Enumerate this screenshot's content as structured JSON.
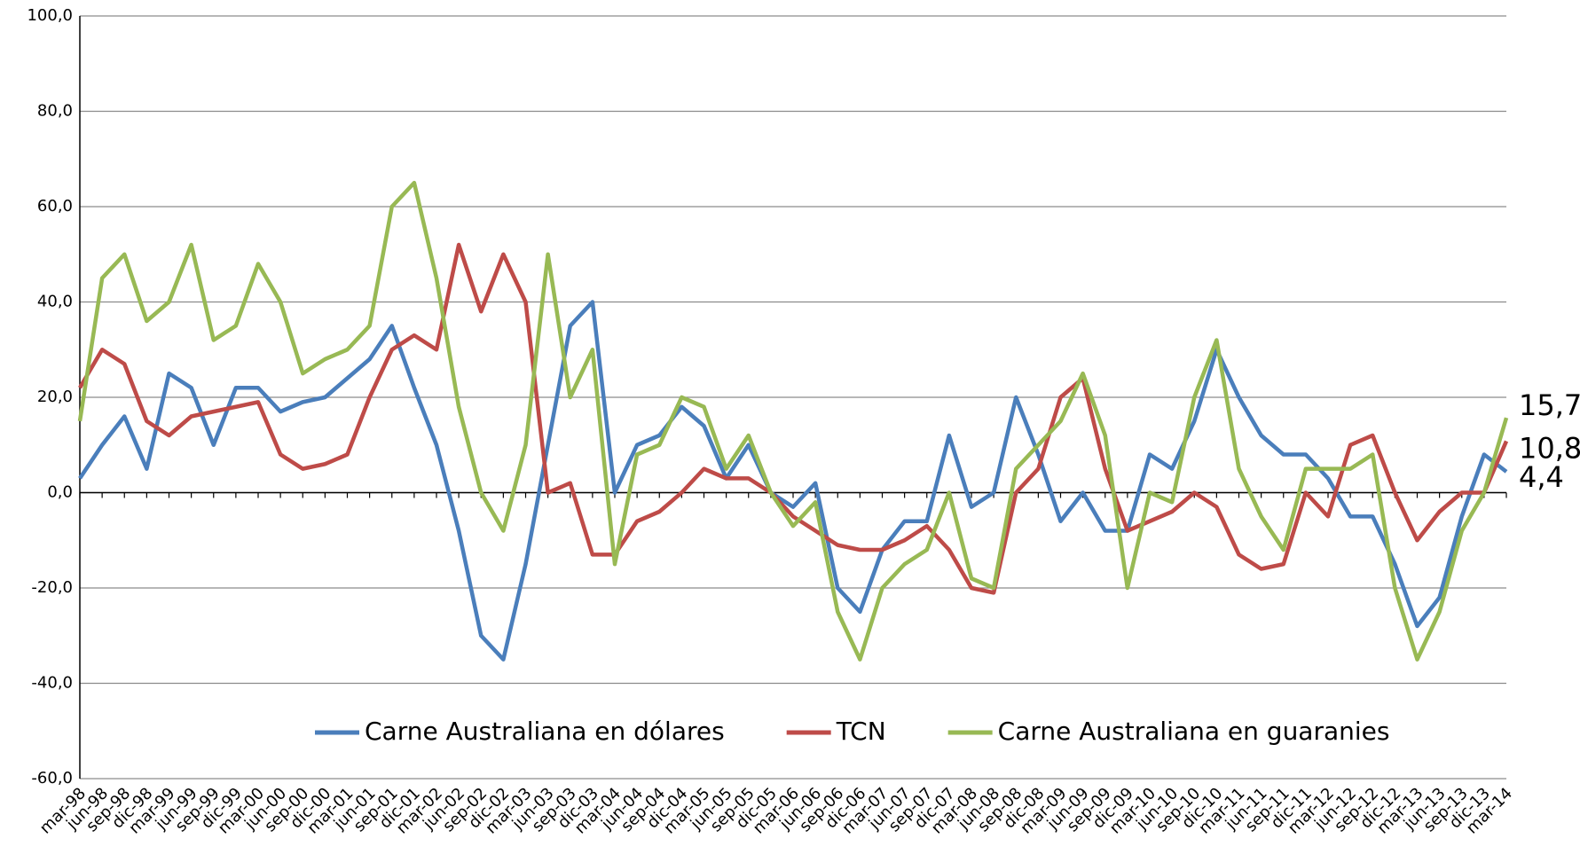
{
  "chart_data": {
    "type": "line",
    "categories": [
      "mar-98",
      "jun-98",
      "sep-98",
      "dic-98",
      "mar-99",
      "jun-99",
      "sep-99",
      "dic-99",
      "mar-00",
      "jun-00",
      "sep-00",
      "dic-00",
      "mar-01",
      "jun-01",
      "sep-01",
      "dic-01",
      "mar-02",
      "jun-02",
      "sep-02",
      "dic-02",
      "mar-03",
      "jun-03",
      "sep-03",
      "dic-03",
      "mar-04",
      "jun-04",
      "sep-04",
      "dic-04",
      "mar-05",
      "jun-05",
      "sep-05",
      "dic-05",
      "mar-06",
      "jun-06",
      "sep-06",
      "dic-06",
      "mar-07",
      "jun-07",
      "sep-07",
      "dic-07",
      "mar-08",
      "jun-08",
      "sep-08",
      "dic-08",
      "mar-09",
      "jun-09",
      "sep-09",
      "dic-09",
      "mar-10",
      "jun-10",
      "sep-10",
      "dic-10",
      "mar-11",
      "jun-11",
      "sep-11",
      "dic-11",
      "mar-12",
      "jun-12",
      "sep-12",
      "dic-12",
      "mar-13",
      "jun-13",
      "sep-13",
      "dic-13",
      "mar-14"
    ],
    "series": [
      {
        "name": "Carne Australiana en dólares",
        "color": "#4a7ebb",
        "values": [
          3,
          10,
          16,
          5,
          25,
          22,
          10,
          22,
          22,
          17,
          19,
          20,
          24,
          28,
          35,
          22,
          10,
          -8,
          -30,
          -35,
          -15,
          10,
          35,
          40,
          0,
          10,
          12,
          18,
          14,
          3,
          10,
          0,
          -3,
          2,
          -20,
          -25,
          -12,
          -6,
          -6,
          12,
          -3,
          0,
          20,
          8,
          -6,
          0,
          -8,
          -8,
          8,
          5,
          15,
          30,
          20,
          12,
          8,
          8,
          3,
          -5,
          -5,
          -15,
          -28,
          -22,
          -5,
          8,
          4.4
        ],
        "value_labels": [
          null,
          null,
          null,
          null,
          null,
          null,
          null,
          null,
          null,
          null,
          null,
          null,
          null,
          null,
          null,
          null,
          null,
          null,
          null,
          null,
          null,
          null,
          null,
          null,
          null,
          null,
          null,
          null,
          null,
          null,
          null,
          null,
          null,
          null,
          null,
          null,
          null,
          null,
          null,
          null,
          null,
          null,
          null,
          null,
          null,
          null,
          null,
          null,
          null,
          null,
          null,
          null,
          null,
          null,
          null,
          null,
          null,
          null,
          null,
          null,
          null,
          null,
          null,
          null,
          "4,4"
        ]
      },
      {
        "name": "TCN",
        "color": "#be4b48",
        "values": [
          22,
          30,
          27,
          15,
          12,
          16,
          17,
          18,
          19,
          8,
          5,
          6,
          8,
          20,
          30,
          33,
          30,
          52,
          38,
          50,
          40,
          0,
          2,
          -13,
          -13,
          -6,
          -4,
          0,
          5,
          3,
          3,
          0,
          -5,
          -8,
          -11,
          -12,
          -12,
          -10,
          -7,
          -12,
          -20,
          -21,
          0,
          5,
          20,
          24,
          5,
          -8,
          -6,
          -4,
          0,
          -3,
          -13,
          -16,
          -15,
          0,
          -5,
          10,
          12,
          0,
          -10,
          -4,
          0,
          0,
          10.8
        ],
        "value_labels": [
          null,
          null,
          null,
          null,
          null,
          null,
          null,
          null,
          null,
          null,
          null,
          null,
          null,
          null,
          null,
          null,
          null,
          null,
          null,
          null,
          null,
          null,
          null,
          null,
          null,
          null,
          null,
          null,
          null,
          null,
          null,
          null,
          null,
          null,
          null,
          null,
          null,
          null,
          null,
          null,
          null,
          null,
          null,
          null,
          null,
          null,
          null,
          null,
          null,
          null,
          null,
          null,
          null,
          null,
          null,
          null,
          null,
          null,
          null,
          null,
          null,
          null,
          null,
          null,
          "10,8"
        ]
      },
      {
        "name": "Carne Australiana en guaranies",
        "color": "#98b954",
        "values": [
          15,
          45,
          50,
          36,
          40,
          52,
          32,
          35,
          48,
          40,
          25,
          28,
          30,
          35,
          60,
          65,
          45,
          18,
          0,
          -8,
          10,
          50,
          20,
          30,
          -15,
          8,
          10,
          20,
          18,
          5,
          12,
          0,
          -7,
          -2,
          -25,
          -35,
          -20,
          -15,
          -12,
          0,
          -18,
          -20,
          5,
          10,
          15,
          25,
          12,
          -20,
          0,
          -2,
          20,
          32,
          5,
          -5,
          -12,
          5,
          5,
          5,
          8,
          -20,
          -35,
          -25,
          -8,
          0,
          15.7
        ],
        "value_labels": [
          null,
          null,
          null,
          null,
          null,
          null,
          null,
          null,
          null,
          null,
          null,
          null,
          null,
          null,
          null,
          null,
          null,
          null,
          null,
          null,
          null,
          null,
          null,
          null,
          null,
          null,
          null,
          null,
          null,
          null,
          null,
          null,
          null,
          null,
          null,
          null,
          null,
          null,
          null,
          null,
          null,
          null,
          null,
          null,
          null,
          null,
          null,
          null,
          null,
          null,
          null,
          null,
          null,
          null,
          null,
          null,
          null,
          null,
          null,
          null,
          null,
          null,
          null,
          null,
          "15,7"
        ]
      }
    ],
    "ylim": [
      -60,
      100
    ],
    "yticks": [
      {
        "value": -60,
        "label": "-60,0"
      },
      {
        "value": -40,
        "label": "-40,0"
      },
      {
        "value": -20,
        "label": "-20,0"
      },
      {
        "value": 0,
        "label": "0,0"
      },
      {
        "value": 20,
        "label": "20,0"
      },
      {
        "value": 40,
        "label": "40,0"
      },
      {
        "value": 60,
        "label": "60,0"
      },
      {
        "value": 80,
        "label": "80,0"
      },
      {
        "value": 100,
        "label": "100,0"
      }
    ],
    "grid": true,
    "legend": "bottom"
  }
}
